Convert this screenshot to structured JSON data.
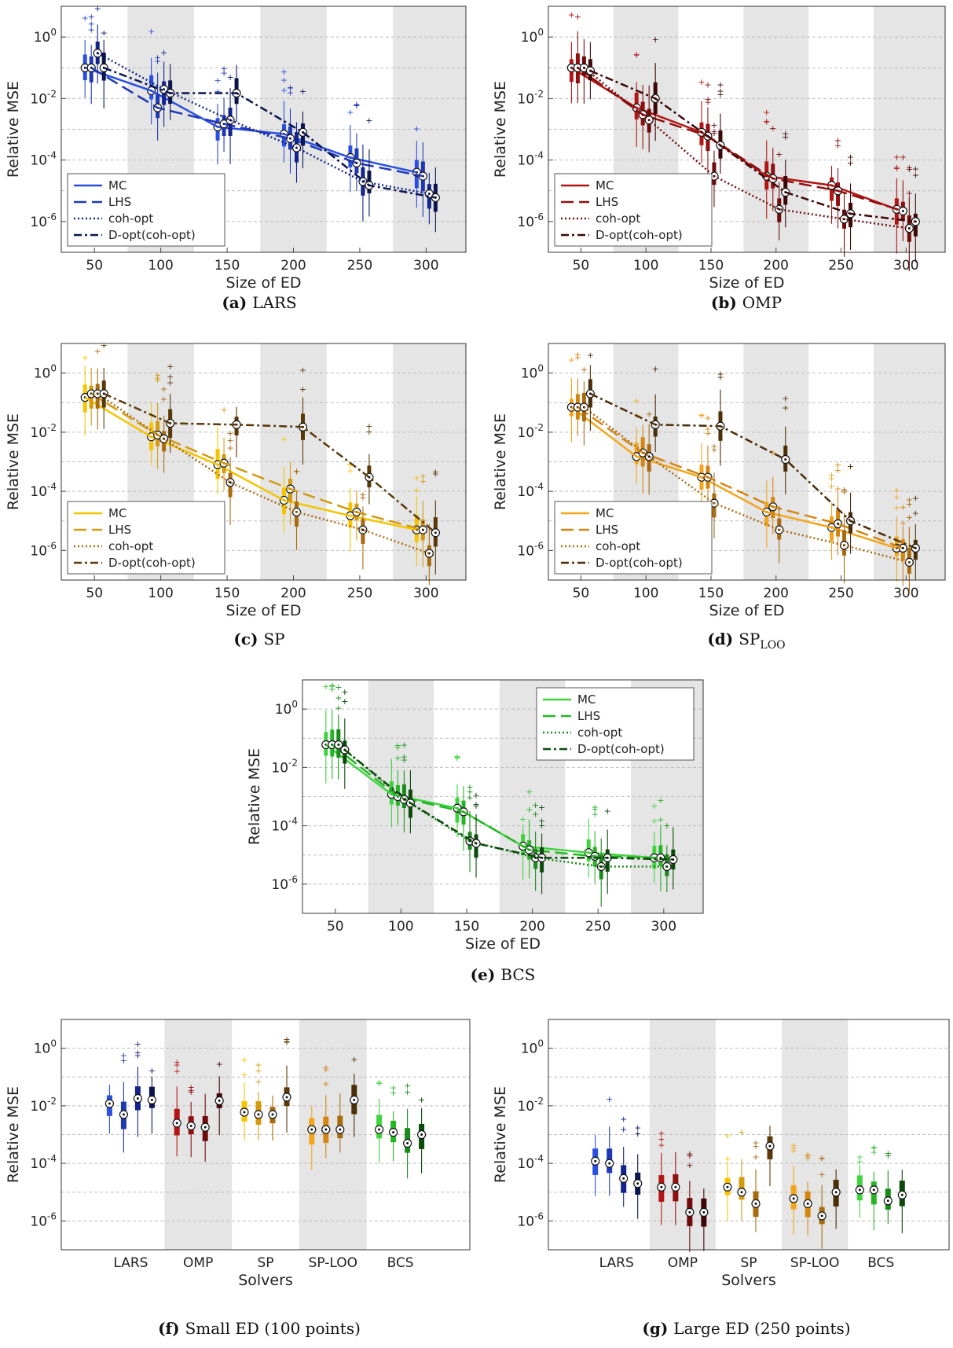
{
  "chart_data": [
    {
      "type": "box",
      "subplot": "(a)",
      "caption_title": "LARS",
      "xlabel": "Size of ED",
      "ylabel": "Relative MSE",
      "yscale": "log",
      "ylim": [
        1e-07,
        10
      ],
      "xlim": [
        25,
        330
      ],
      "x_ticks": [
        50,
        100,
        150,
        200,
        250,
        300
      ],
      "y_tick_labels": [
        "10^{0}",
        "10^{-2}",
        "10^{-4}",
        "10^{-6}"
      ],
      "legend": [
        "MC",
        "LHS",
        "coh-opt",
        "D-opt(coh-opt)"
      ],
      "legend_position": "lower-left",
      "colors": [
        "#2b4fe0",
        "#1f38b5",
        "#12238a",
        "#0a1550"
      ],
      "x": [
        50,
        100,
        150,
        200,
        250,
        300
      ],
      "series": [
        {
          "name": "MC",
          "median": [
            0.1,
            0.018,
            0.0012,
            0.0007,
            0.00012,
            4e-05
          ]
        },
        {
          "name": "LHS",
          "median": [
            0.1,
            0.005,
            0.0015,
            0.0005,
            8e-05,
            3e-05
          ]
        },
        {
          "name": "coh-opt",
          "median": [
            0.3,
            0.02,
            0.002,
            0.00025,
            2e-05,
            8e-06
          ]
        },
        {
          "name": "D-opt(coh-opt)",
          "median": [
            0.1,
            0.015,
            0.015,
            0.0008,
            1.5e-05,
            6e-06
          ]
        }
      ],
      "shaded_bands": [
        [
          75,
          125
        ],
        [
          175,
          225
        ],
        [
          275,
          330
        ]
      ]
    },
    {
      "type": "box",
      "subplot": "(b)",
      "caption_title": "OMP",
      "xlabel": "Size of ED",
      "ylabel": "Relative MSE",
      "yscale": "log",
      "ylim": [
        1e-07,
        10
      ],
      "xlim": [
        25,
        330
      ],
      "x_ticks": [
        50,
        100,
        150,
        200,
        250,
        300
      ],
      "y_tick_labels": [
        "10^{0}",
        "10^{-2}",
        "10^{-4}",
        "10^{-6}"
      ],
      "legend": [
        "MC",
        "LHS",
        "coh-opt",
        "D-opt(coh-opt)"
      ],
      "legend_position": "lower-left",
      "colors": [
        "#b31515",
        "#8f1010",
        "#6e0c0c",
        "#3e0707"
      ],
      "x": [
        50,
        100,
        150,
        200,
        250,
        300
      ],
      "series": [
        {
          "name": "MC",
          "median": [
            0.1,
            0.005,
            0.0008,
            3e-05,
            1.5e-05,
            2.5e-06
          ]
        },
        {
          "name": "LHS",
          "median": [
            0.1,
            0.003,
            0.0006,
            2.5e-05,
            1e-05,
            2.2e-06
          ]
        },
        {
          "name": "coh-opt",
          "median": [
            0.1,
            0.002,
            3e-05,
            2.5e-06,
            1.2e-06,
            6e-07
          ]
        },
        {
          "name": "D-opt(coh-opt)",
          "median": [
            0.08,
            0.01,
            0.0003,
            9e-06,
            1.8e-06,
            1e-06
          ]
        }
      ],
      "shaded_bands": [
        [
          75,
          125
        ],
        [
          175,
          225
        ],
        [
          275,
          330
        ]
      ]
    },
    {
      "type": "box",
      "subplot": "(c)",
      "caption_title": "SP",
      "xlabel": "Size of ED",
      "ylabel": "Relative MSE",
      "yscale": "log",
      "ylim": [
        1e-07,
        10
      ],
      "xlim": [
        25,
        330
      ],
      "x_ticks": [
        50,
        100,
        150,
        200,
        250,
        300
      ],
      "y_tick_labels": [
        "10^{0}",
        "10^{-2}",
        "10^{-4}",
        "10^{-6}"
      ],
      "legend": [
        "MC",
        "LHS",
        "coh-opt",
        "D-opt(coh-opt)"
      ],
      "legend_position": "lower-left",
      "colors": [
        "#f5c400",
        "#d49a10",
        "#a96b10",
        "#5a3808"
      ],
      "x": [
        50,
        100,
        150,
        200,
        250,
        300
      ],
      "series": [
        {
          "name": "MC",
          "median": [
            0.15,
            0.007,
            0.0008,
            5e-05,
            1.5e-05,
            5e-06
          ]
        },
        {
          "name": "LHS",
          "median": [
            0.2,
            0.008,
            0.0009,
            0.00012,
            2e-05,
            5e-06
          ]
        },
        {
          "name": "coh-opt",
          "median": [
            0.2,
            0.006,
            0.0002,
            2e-05,
            5e-06,
            8e-07
          ]
        },
        {
          "name": "D-opt(coh-opt)",
          "median": [
            0.2,
            0.02,
            0.018,
            0.015,
            0.0003,
            4e-06
          ]
        }
      ],
      "shaded_bands": [
        [
          75,
          125
        ],
        [
          175,
          225
        ],
        [
          275,
          330
        ]
      ]
    },
    {
      "type": "box",
      "subplot": "(d)",
      "caption_title": "SP",
      "caption_subscript": "LOO",
      "xlabel": "Size of ED",
      "ylabel": "Relative MSE",
      "yscale": "log",
      "ylim": [
        1e-07,
        10
      ],
      "xlim": [
        25,
        330
      ],
      "x_ticks": [
        50,
        100,
        150,
        200,
        250,
        300
      ],
      "y_tick_labels": [
        "10^{0}",
        "10^{-2}",
        "10^{-4}",
        "10^{-6}"
      ],
      "legend": [
        "MC",
        "LHS",
        "coh-opt",
        "D-opt(coh-opt)"
      ],
      "legend_position": "lower-left",
      "colors": [
        "#f2a51c",
        "#d48613",
        "#a96b10",
        "#4a2e06"
      ],
      "x": [
        50,
        100,
        150,
        200,
        250,
        300
      ],
      "series": [
        {
          "name": "MC",
          "median": [
            0.07,
            0.0015,
            0.0003,
            2e-05,
            6e-06,
            1.2e-06
          ]
        },
        {
          "name": "LHS",
          "median": [
            0.07,
            0.002,
            0.0003,
            3e-05,
            8e-06,
            1.2e-06
          ]
        },
        {
          "name": "coh-opt",
          "median": [
            0.07,
            0.0015,
            4e-05,
            5e-06,
            1.5e-06,
            4e-07
          ]
        },
        {
          "name": "D-opt(coh-opt)",
          "median": [
            0.2,
            0.018,
            0.016,
            0.0012,
            1e-05,
            1.2e-06
          ]
        }
      ],
      "shaded_bands": [
        [
          75,
          125
        ],
        [
          175,
          225
        ],
        [
          275,
          330
        ]
      ]
    },
    {
      "type": "box",
      "subplot": "(e)",
      "caption_title": "BCS",
      "xlabel": "Size of ED",
      "ylabel": "Relative MSE",
      "yscale": "log",
      "ylim": [
        1e-07,
        10
      ],
      "xlim": [
        25,
        330
      ],
      "x_ticks": [
        50,
        100,
        150,
        200,
        250,
        300
      ],
      "y_tick_labels": [
        "10^{0}",
        "10^{-2}",
        "10^{-4}",
        "10^{-6}"
      ],
      "legend": [
        "MC",
        "LHS",
        "coh-opt",
        "D-opt(coh-opt)"
      ],
      "legend_position": "top-right",
      "colors": [
        "#3fd43f",
        "#27b527",
        "#1a8a1a",
        "#0b4a0b"
      ],
      "x": [
        50,
        100,
        150,
        200,
        250,
        300
      ],
      "series": [
        {
          "name": "MC",
          "median": [
            0.06,
            0.0012,
            0.0004,
            2e-05,
            1.2e-05,
            8e-06
          ]
        },
        {
          "name": "LHS",
          "median": [
            0.06,
            0.001,
            0.0003,
            1.5e-05,
            9e-06,
            8e-06
          ]
        },
        {
          "name": "coh-opt",
          "median": [
            0.06,
            0.0008,
            3e-05,
            8e-06,
            4e-06,
            4e-06
          ]
        },
        {
          "name": "D-opt(coh-opt)",
          "median": [
            0.04,
            0.0006,
            2.5e-05,
            8e-06,
            8e-06,
            7e-06
          ]
        }
      ],
      "shaded_bands": [
        [
          75,
          125
        ],
        [
          175,
          225
        ],
        [
          275,
          330
        ]
      ]
    },
    {
      "type": "box",
      "subplot": "(f)",
      "caption_title": "Small ED (100 points)",
      "xlabel": "Solvers",
      "ylabel": "Relative MSE",
      "yscale": "log",
      "ylim": [
        1e-07,
        10
      ],
      "categories": [
        "LARS",
        "OMP",
        "SP",
        "SP-LOO",
        "BCS"
      ],
      "y_tick_labels": [
        "10^{0}",
        "10^{-2}",
        "10^{-4}",
        "10^{-6}"
      ],
      "boxes": [
        {
          "solver": "LARS",
          "colors": [
            "#2b4fe0",
            "#1f38b5",
            "#12238a",
            "#0a1550"
          ],
          "median": [
            0.012,
            0.005,
            0.018,
            0.016
          ]
        },
        {
          "solver": "OMP",
          "colors": [
            "#b31515",
            "#8f1010",
            "#6e0c0c",
            "#3e0707"
          ],
          "median": [
            0.0025,
            0.002,
            0.0018,
            0.015
          ]
        },
        {
          "solver": "SP",
          "colors": [
            "#f5c400",
            "#d49a10",
            "#a96b10",
            "#5a3808"
          ],
          "median": [
            0.006,
            0.005,
            0.005,
            0.02
          ]
        },
        {
          "solver": "SP-LOO",
          "colors": [
            "#f2a51c",
            "#d48613",
            "#a96b10",
            "#4a2e06"
          ],
          "median": [
            0.0015,
            0.0015,
            0.0015,
            0.016
          ]
        },
        {
          "solver": "BCS",
          "colors": [
            "#3fd43f",
            "#27b527",
            "#1a8a1a",
            "#0b4a0b"
          ],
          "median": [
            0.0015,
            0.0012,
            0.0005,
            0.001
          ]
        }
      ]
    },
    {
      "type": "box",
      "subplot": "(g)",
      "caption_title": "Large ED (250 points)",
      "xlabel": "Solvers",
      "ylabel": "Relative MSE",
      "yscale": "log",
      "ylim": [
        1e-07,
        10
      ],
      "categories": [
        "LARS",
        "OMP",
        "SP",
        "SP-LOO",
        "BCS"
      ],
      "y_tick_labels": [
        "10^{0}",
        "10^{-2}",
        "10^{-4}",
        "10^{-6}"
      ],
      "boxes": [
        {
          "solver": "LARS",
          "colors": [
            "#2b4fe0",
            "#1f38b5",
            "#12238a",
            "#0a1550"
          ],
          "median": [
            0.00012,
            0.0001,
            3e-05,
            2e-05
          ]
        },
        {
          "solver": "OMP",
          "colors": [
            "#b31515",
            "#8f1010",
            "#6e0c0c",
            "#3e0707"
          ],
          "median": [
            1.5e-05,
            1.5e-05,
            2e-06,
            2e-06
          ]
        },
        {
          "solver": "SP",
          "colors": [
            "#f5c400",
            "#d49a10",
            "#a96b10",
            "#5a3808"
          ],
          "median": [
            1.5e-05,
            1e-05,
            4e-06,
            0.0004
          ]
        },
        {
          "solver": "SP-LOO",
          "colors": [
            "#f2a51c",
            "#d48613",
            "#a96b10",
            "#4a2e06"
          ],
          "median": [
            6e-06,
            4e-06,
            1.5e-06,
            1e-05
          ]
        },
        {
          "solver": "BCS",
          "colors": [
            "#3fd43f",
            "#27b527",
            "#1a8a1a",
            "#0b4a0b"
          ],
          "median": [
            1.2e-05,
            1.2e-05,
            5e-06,
            8e-06
          ]
        }
      ]
    }
  ]
}
